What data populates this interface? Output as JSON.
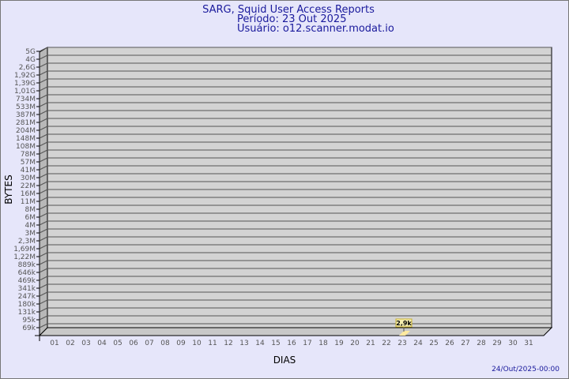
{
  "chart_data": {
    "type": "bar",
    "title": [
      "SARG, Squid User Access Reports",
      "Período: 23 Out 2025",
      "Usuário: o12.scanner.modat.io"
    ],
    "xlabel": "DIAS",
    "ylabel": "BYTES",
    "y_scale": "log",
    "y_tick_labels": [
      "5G",
      "4G",
      "2,6G",
      "1,92G",
      "1,39G",
      "1,01G",
      "734M",
      "533M",
      "387M",
      "281M",
      "204M",
      "148M",
      "108M",
      "78M",
      "57M",
      "41M",
      "30M",
      "22M",
      "16M",
      "11M",
      "8M",
      "6M",
      "4M",
      "3M",
      "2,3M",
      "1,69M",
      "1,22M",
      "889k",
      "646k",
      "469k",
      "341k",
      "247k",
      "180k",
      "131k",
      "95k",
      "69k"
    ],
    "categories": [
      "01",
      "02",
      "03",
      "04",
      "05",
      "06",
      "07",
      "08",
      "09",
      "10",
      "11",
      "12",
      "13",
      "14",
      "15",
      "16",
      "17",
      "18",
      "19",
      "20",
      "21",
      "22",
      "23",
      "24",
      "25",
      "26",
      "27",
      "28",
      "29",
      "30",
      "31"
    ],
    "series": [
      {
        "points": [
          {
            "x": "23",
            "value": 2900,
            "label": "2,9k"
          }
        ]
      }
    ],
    "grid": true,
    "footer": "24/Out/2025-00:00",
    "colors": {
      "background": "#e6e6fa",
      "plot": "#d3d3d3",
      "bar": "#ffe9a0",
      "title": "#1a1a9c"
    }
  }
}
